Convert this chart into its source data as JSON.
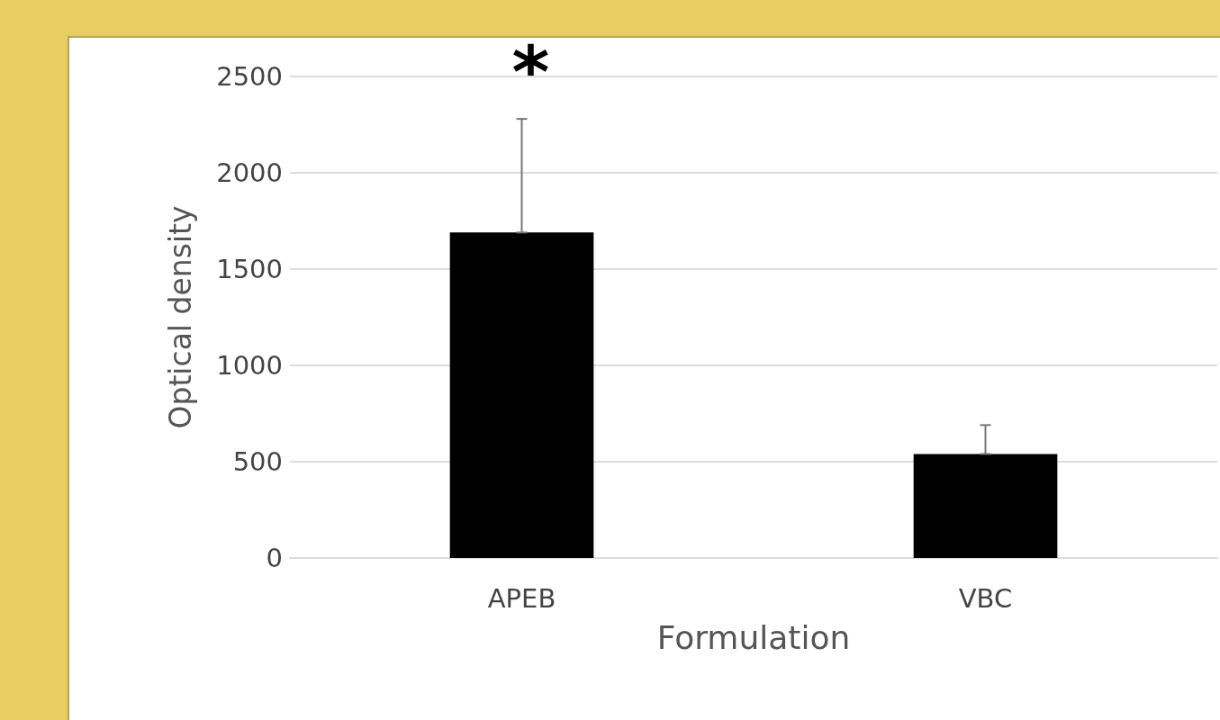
{
  "chart_data": {
    "type": "bar",
    "xlabel": "Formulation",
    "ylabel": "Optical density",
    "categories": [
      "APEB",
      "VBC"
    ],
    "values": [
      1690,
      540
    ],
    "color": "#000000",
    "errors": [
      [
        1690,
        2280
      ],
      [
        540,
        690
      ]
    ],
    "ylim": [
      0,
      2500
    ],
    "yticks": [
      0,
      500,
      1000,
      1500,
      2000,
      2500
    ],
    "grid": "y",
    "annotations": [
      {
        "text": "*",
        "x": "APEB",
        "y": 2280
      }
    ]
  }
}
